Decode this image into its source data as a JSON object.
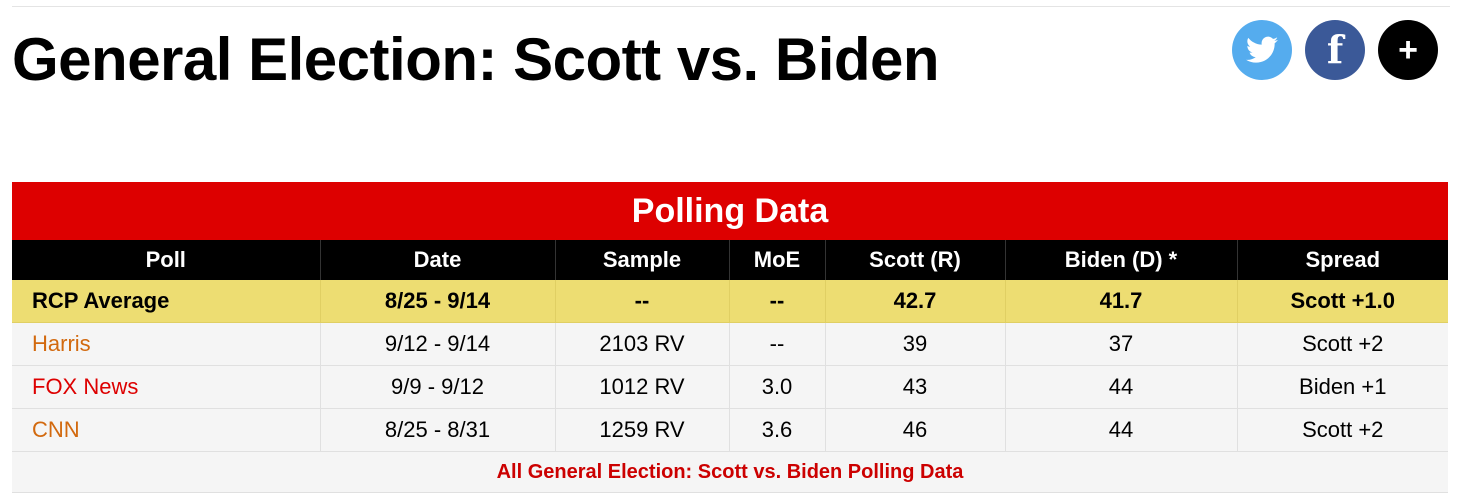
{
  "page": {
    "title": "General Election: Scott vs. Biden"
  },
  "share": {
    "twitter_icon": "twitter-bird-icon",
    "facebook_icon": "facebook-f-icon",
    "facebook_glyph": "f",
    "more_icon": "plus-icon",
    "more_glyph": "+"
  },
  "table": {
    "title": "Polling Data",
    "columns": [
      "Poll",
      "Date",
      "Sample",
      "MoE",
      "Scott (R)",
      "Biden (D) *",
      "Spread"
    ],
    "average": {
      "poll": "RCP Average",
      "date": "8/25 - 9/14",
      "sample": "--",
      "moe": "--",
      "scott": "42.7",
      "biden": "41.7",
      "spread": "Scott +1.0"
    },
    "rows": [
      {
        "poll": "Harris",
        "date": "9/12 - 9/14",
        "sample": "2103 RV",
        "moe": "--",
        "scott": "39",
        "biden": "37",
        "spread": "Scott +2"
      },
      {
        "poll": "FOX News",
        "date": "9/9 - 9/12",
        "sample": "1012 RV",
        "moe": "3.0",
        "scott": "43",
        "biden": "44",
        "spread": "Biden +1"
      },
      {
        "poll": "CNN",
        "date": "8/25 - 8/31",
        "sample": "1259 RV",
        "moe": "3.6",
        "scott": "46",
        "biden": "44",
        "spread": "Scott +2"
      }
    ],
    "footer_link": "All General Election: Scott vs. Biden Polling Data"
  },
  "colors": {
    "header_red": "#dd0000",
    "average_row": "#eddd72",
    "republican": "#dd0000",
    "democrat": "#0000ee",
    "pollster_link": "#d2690e",
    "twitter": "#55acee",
    "facebook": "#3b5998"
  }
}
